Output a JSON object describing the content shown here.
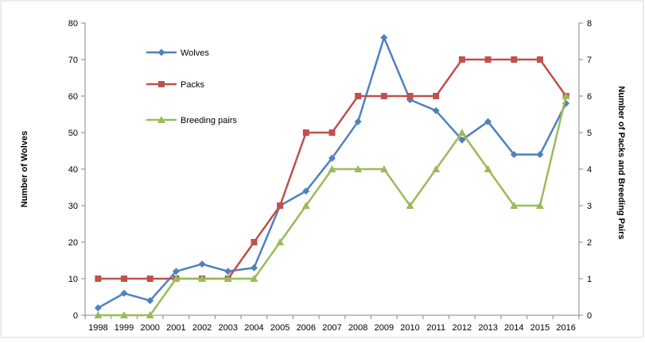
{
  "chart_data": {
    "type": "line",
    "x": [
      "1998",
      "1999",
      "2000",
      "2001",
      "2002",
      "2003",
      "2004",
      "2005",
      "2006",
      "2007",
      "2008",
      "2009",
      "2010",
      "2011",
      "2012",
      "2013",
      "2014",
      "2015",
      "2016"
    ],
    "ylabel_left": "Number of Wolves",
    "ylabel_right": "Number of Packs and Breeding Pairs",
    "ylim_left": [
      0,
      80
    ],
    "ylim_right": [
      0,
      8
    ],
    "yticks_left": [
      "0",
      "10",
      "20",
      "30",
      "40",
      "50",
      "60",
      "70",
      "80"
    ],
    "yticks_right": [
      "0",
      "1",
      "2",
      "3",
      "4",
      "5",
      "6",
      "7",
      "8"
    ],
    "grid": false,
    "legend_position": "top-left",
    "series": [
      {
        "name": "Wolves",
        "axis": "left",
        "color": "#4f81bd",
        "marker": "diamond",
        "values": [
          2,
          6,
          4,
          12,
          14,
          12,
          13,
          30,
          34,
          43,
          53,
          76,
          59,
          56,
          48,
          53,
          44,
          44,
          58
        ]
      },
      {
        "name": "Packs",
        "axis": "right",
        "color": "#c0504d",
        "marker": "square",
        "values": [
          1,
          1,
          1,
          1,
          1,
          1,
          2,
          3,
          5,
          5,
          6,
          6,
          6,
          6,
          7,
          7,
          7,
          7,
          6
        ]
      },
      {
        "name": "Breeding pairs",
        "axis": "right",
        "color": "#9bbb59",
        "marker": "triangle",
        "values": [
          0,
          0,
          0,
          1,
          1,
          1,
          1,
          2,
          3,
          4,
          4,
          4,
          3,
          4,
          5,
          4,
          3,
          3,
          6
        ]
      }
    ]
  }
}
